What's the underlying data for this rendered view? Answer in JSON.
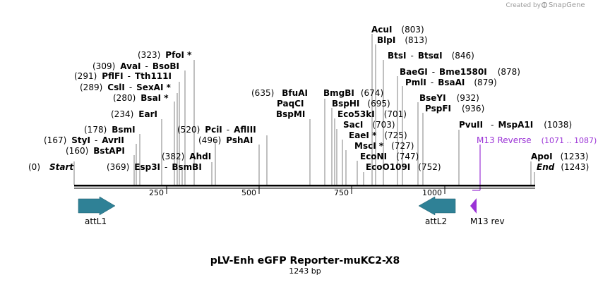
{
  "watermark": {
    "prefix": "Created by",
    "brand": "SnapGene"
  },
  "title": "pLV-Enh eGFP Reporter-muKC2-X8",
  "length_text": "1243 bp",
  "colors": {
    "feature": "#2f8196",
    "primer": "#9b33d6",
    "line": "#000000",
    "leader": "#808080"
  },
  "total_bp": 1243,
  "ticks": [
    250,
    500,
    750,
    1000
  ],
  "sites": [
    {
      "pos_text": "(0)",
      "name": "Start",
      "italic": true
    },
    {
      "pos_text": "(160)",
      "name": "BstAPI"
    },
    {
      "pos_text": "(167)",
      "name": "StyI",
      "name2": "AvrII"
    },
    {
      "pos_text": "(178)",
      "name": "BsmI"
    },
    {
      "pos_text": "(234)",
      "name": "EarI"
    },
    {
      "pos_text": "(280)",
      "name": "BsaI *"
    },
    {
      "pos_text": "(289)",
      "name": "CslI",
      "name2": "SexAI *"
    },
    {
      "pos_text": "(291)",
      "name": "PflFI",
      "name2": "Tth111I"
    },
    {
      "pos_text": "(309)",
      "name": "AvaI",
      "name2": "BsoBI"
    },
    {
      "pos_text": "(323)",
      "name": "PfoI *"
    },
    {
      "pos_text": "(369)",
      "name": "Esp3I",
      "name2": "BsmBI"
    },
    {
      "pos_text": "(382)",
      "name": "AhdI"
    },
    {
      "pos_text": "(496)",
      "name": "PshAI"
    },
    {
      "pos_text": "(520)",
      "name": "PciI",
      "name2": "AflIII"
    },
    {
      "pos_text": "(635)",
      "name": "BfuAI",
      "extra": [
        "PaqCI",
        "BspMI"
      ]
    },
    {
      "pos_text": "(674)",
      "name": "BmgBI"
    },
    {
      "pos_text": "(695)",
      "name": "BspHI"
    },
    {
      "pos_text": "(701)",
      "name": "Eco53kI"
    },
    {
      "pos_text": "(703)",
      "name": "SacI"
    },
    {
      "pos_text": "(725)",
      "name": "EaeI *"
    },
    {
      "pos_text": "(727)",
      "name": "MscI *"
    },
    {
      "pos_text": "(747)",
      "name": "EcoNI"
    },
    {
      "pos_text": "(752)",
      "name": "EcoO109I"
    },
    {
      "pos_text": "(803)",
      "name": "AcuI"
    },
    {
      "pos_text": "(813)",
      "name": "BlpI"
    },
    {
      "pos_text": "(846)",
      "name": "BtsI",
      "name2": "BtsαI"
    },
    {
      "pos_text": "(878)",
      "name": "BaeGI",
      "name2": "Bme1580I"
    },
    {
      "pos_text": "(879)",
      "name": "PmlI",
      "name2": "BsaAI"
    },
    {
      "pos_text": "(932)",
      "name": "BseYI"
    },
    {
      "pos_text": "(936)",
      "name": "PspFI"
    },
    {
      "pos_text": "(1038)",
      "name": "PvuII",
      "name2": "MspA1I"
    },
    {
      "pos_text": "(1233)",
      "name": "ApoI"
    },
    {
      "pos_text": "(1243)",
      "name": "End",
      "italic": true
    }
  ],
  "primer": {
    "name": "M13 Reverse",
    "range": "(1071 .. 1087)",
    "label": "M13 rev"
  },
  "features": [
    {
      "name": "attL1",
      "direction": "right"
    },
    {
      "name": "attL2",
      "direction": "left"
    }
  ]
}
